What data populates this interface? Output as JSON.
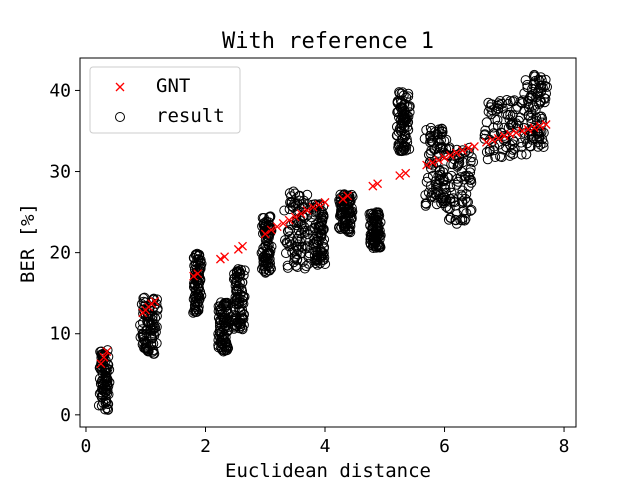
{
  "chart_data": {
    "type": "scatter",
    "title": "With reference 1",
    "xlabel": "Euclidean distance",
    "ylabel": "BER [%]",
    "xlim": [
      -0.1,
      8.2
    ],
    "ylim": [
      -1.5,
      44
    ],
    "xticks": [
      0,
      2,
      4,
      6,
      8
    ],
    "yticks": [
      0,
      10,
      20,
      30,
      40
    ],
    "grid": false,
    "legend": {
      "position": "top-left"
    },
    "series": [
      {
        "name": "GNT",
        "marker": "x",
        "color": "#ff0000",
        "points": [
          [
            0.25,
            6.3
          ],
          [
            0.3,
            7.1
          ],
          [
            0.35,
            7.8
          ],
          [
            0.95,
            12.6
          ],
          [
            1.0,
            12.9
          ],
          [
            1.05,
            13.3
          ],
          [
            1.1,
            13.7
          ],
          [
            1.15,
            14.0
          ],
          [
            1.8,
            17.1
          ],
          [
            1.87,
            17.4
          ],
          [
            2.25,
            19.2
          ],
          [
            2.32,
            19.5
          ],
          [
            2.55,
            20.4
          ],
          [
            2.62,
            20.8
          ],
          [
            3.0,
            22.3
          ],
          [
            3.1,
            22.8
          ],
          [
            3.2,
            23.2
          ],
          [
            3.3,
            23.6
          ],
          [
            3.4,
            24.0
          ],
          [
            3.5,
            24.4
          ],
          [
            3.6,
            24.8
          ],
          [
            3.7,
            25.2
          ],
          [
            3.8,
            25.6
          ],
          [
            3.9,
            25.9
          ],
          [
            4.0,
            26.2
          ],
          [
            4.3,
            26.6
          ],
          [
            4.38,
            27.0
          ],
          [
            4.8,
            28.2
          ],
          [
            4.88,
            28.5
          ],
          [
            5.25,
            29.5
          ],
          [
            5.35,
            29.8
          ],
          [
            5.7,
            30.8
          ],
          [
            5.8,
            31.1
          ],
          [
            5.9,
            31.4
          ],
          [
            6.0,
            31.7
          ],
          [
            6.1,
            32.0
          ],
          [
            6.2,
            32.3
          ],
          [
            6.3,
            32.6
          ],
          [
            6.4,
            32.9
          ],
          [
            6.5,
            33.1
          ],
          [
            6.7,
            33.6
          ],
          [
            6.8,
            33.9
          ],
          [
            6.9,
            34.1
          ],
          [
            7.0,
            34.4
          ],
          [
            7.1,
            34.6
          ],
          [
            7.2,
            34.8
          ],
          [
            7.3,
            35.0
          ],
          [
            7.4,
            35.2
          ],
          [
            7.5,
            35.4
          ],
          [
            7.6,
            35.6
          ],
          [
            7.7,
            35.8
          ]
        ]
      },
      {
        "name": "result",
        "marker": "o",
        "color": "#000000",
        "clusters": [
          {
            "x": [
              0.22,
              0.38
            ],
            "y": [
              0.5,
              8.0
            ]
          },
          {
            "x": [
              0.93,
              1.18
            ],
            "y": [
              7.5,
              14.5
            ]
          },
          {
            "x": [
              1.8,
              1.92
            ],
            "y": [
              12.5,
              20.0
            ]
          },
          {
            "x": [
              2.22,
              2.38
            ],
            "y": [
              7.8,
              14.0
            ]
          },
          {
            "x": [
              2.48,
              2.65
            ],
            "y": [
              10.5,
              18.0
            ]
          },
          {
            "x": [
              2.95,
              3.1
            ],
            "y": [
              17.5,
              24.5
            ]
          },
          {
            "x": [
              3.35,
              3.72
            ],
            "y": [
              18.0,
              27.8
            ]
          },
          {
            "x": [
              3.8,
              4.0
            ],
            "y": [
              18.5,
              26.0
            ]
          },
          {
            "x": [
              4.25,
              4.45
            ],
            "y": [
              22.5,
              27.2
            ]
          },
          {
            "x": [
              4.75,
              4.92
            ],
            "y": [
              20.5,
              25.0
            ]
          },
          {
            "x": [
              5.2,
              5.4
            ],
            "y": [
              32.5,
              39.8
            ]
          },
          {
            "x": [
              5.7,
              6.05
            ],
            "y": [
              25.5,
              35.5
            ]
          },
          {
            "x": [
              6.0,
              6.45
            ],
            "y": [
              23.5,
              33.0
            ]
          },
          {
            "x": [
              6.65,
              7.35
            ],
            "y": [
              31.5,
              39.0
            ]
          },
          {
            "x": [
              7.35,
              7.7
            ],
            "y": [
              33.0,
              42.0
            ]
          }
        ]
      }
    ]
  }
}
